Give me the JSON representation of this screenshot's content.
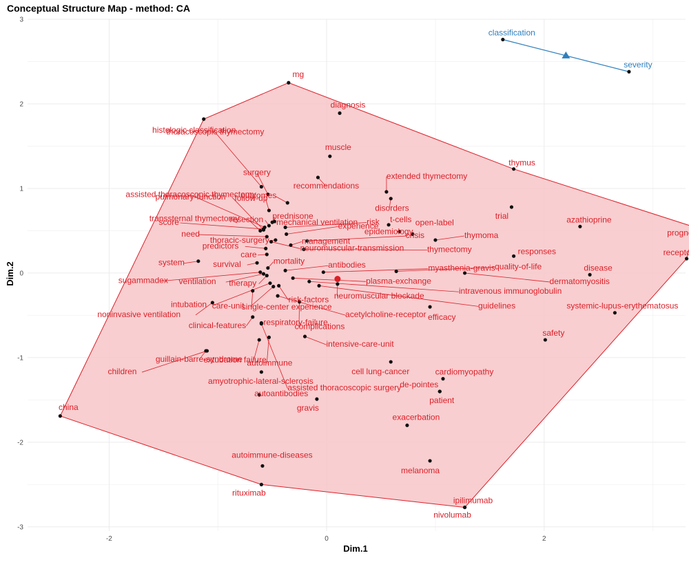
{
  "chart_data": {
    "type": "scatter",
    "title": "Conceptual Structure Map - method: CA",
    "xlabel": "Dim.1",
    "ylabel": "Dim.2",
    "xlim": [
      -2.75,
      3.3
    ],
    "ylim": [
      -3.05,
      3.0
    ],
    "x_ticks": [
      -2,
      0,
      2
    ],
    "y_ticks": [
      -3,
      -2,
      -1,
      0,
      1,
      2,
      3
    ],
    "grid": true,
    "colors": {
      "cluster1": "#dc1f28",
      "cluster1_fill": "#f7c6c8",
      "cluster2": "#2e7fbd",
      "point": "#111111",
      "grid": "#ebebeb",
      "axis_text": "#4d4d4d"
    },
    "clusters": [
      {
        "id": 1,
        "centroid": [
          0.1,
          -0.07
        ],
        "hull": [
          "mg",
          "thymus",
          "prognosis",
          "receptor",
          "ipilimumab",
          "rituximab",
          "china",
          "histologic classification"
        ],
        "points": [
          {
            "label": "mg",
            "x": -0.35,
            "y": 2.25
          },
          {
            "label": "diagnosis",
            "x": 0.12,
            "y": 1.89
          },
          {
            "label": "histologic classification",
            "x": -1.13,
            "y": 1.82
          },
          {
            "label": "muscle",
            "x": 0.03,
            "y": 1.38
          },
          {
            "label": "thymus",
            "x": 1.72,
            "y": 1.23
          },
          {
            "label": "recommendations",
            "x": -0.08,
            "y": 1.13
          },
          {
            "label": "thoracoscopic thymectomy",
            "x": -0.6,
            "y": 1.02
          },
          {
            "label": "assisted thoracoscopic thymectomy",
            "x": -0.57,
            "y": 0.54
          },
          {
            "label": "surgery",
            "x": -0.54,
            "y": 0.93
          },
          {
            "label": "outcomes",
            "x": -0.36,
            "y": 0.83
          },
          {
            "label": "extended thymectomy",
            "x": 0.55,
            "y": 0.96
          },
          {
            "label": "follow-up",
            "x": -0.53,
            "y": 0.74
          },
          {
            "label": "pulmonary-function",
            "x": -0.58,
            "y": 0.51
          },
          {
            "label": "disorders",
            "x": 0.59,
            "y": 0.88
          },
          {
            "label": "mechanical ventilation",
            "x": -0.5,
            "y": 0.6
          },
          {
            "label": "risk",
            "x": -0.38,
            "y": 0.54
          },
          {
            "label": "transsternal thymectomy",
            "x": -0.61,
            "y": 0.5
          },
          {
            "label": "trial",
            "x": 1.7,
            "y": 0.78
          },
          {
            "label": "resection",
            "x": -0.53,
            "y": 0.56
          },
          {
            "label": "prednisone",
            "x": -0.48,
            "y": 0.61
          },
          {
            "label": "score",
            "x": -0.58,
            "y": 0.52
          },
          {
            "label": "experience",
            "x": -0.37,
            "y": 0.46
          },
          {
            "label": "t-cells",
            "x": 0.57,
            "y": 0.57
          },
          {
            "label": "open-label",
            "x": 0.79,
            "y": 0.46
          },
          {
            "label": "azathioprine",
            "x": 2.33,
            "y": 0.55
          },
          {
            "label": "epidemiology",
            "x": 0.67,
            "y": 0.49
          },
          {
            "label": "thymoma",
            "x": 1.0,
            "y": 0.39
          },
          {
            "label": "prognosis",
            "x": 3.39,
            "y": 0.54
          },
          {
            "label": "need",
            "x": -0.55,
            "y": 0.43
          },
          {
            "label": "thoracic-surgery",
            "x": -0.47,
            "y": 0.39
          },
          {
            "label": "management",
            "x": -0.33,
            "y": 0.33
          },
          {
            "label": "neuromuscular-transmission",
            "x": -0.51,
            "y": 0.37
          },
          {
            "label": "crisis",
            "x": -0.18,
            "y": 0.38
          },
          {
            "label": "thymectomy",
            "x": -0.21,
            "y": 0.28
          },
          {
            "label": "responses",
            "x": 1.72,
            "y": 0.2
          },
          {
            "label": "predictors",
            "x": -0.56,
            "y": 0.29
          },
          {
            "label": "care",
            "x": -0.55,
            "y": 0.22
          },
          {
            "label": "system",
            "x": -1.18,
            "y": 0.14
          },
          {
            "label": "survival",
            "x": -0.64,
            "y": 0.12
          },
          {
            "label": "mortality",
            "x": -0.54,
            "y": 0.06
          },
          {
            "label": "antibodies",
            "x": -0.38,
            "y": 0.03
          },
          {
            "label": "myasthenia-gravis",
            "x": -0.03,
            "y": 0.01
          },
          {
            "label": "quality-of-life",
            "x": 0.64,
            "y": 0.02
          },
          {
            "label": "receptor",
            "x": 3.31,
            "y": 0.17
          },
          {
            "label": "disease",
            "x": 2.42,
            "y": -0.02
          },
          {
            "label": "sugammadex",
            "x": -0.61,
            "y": 0.01
          },
          {
            "label": "ventilation",
            "x": -0.58,
            "y": -0.01
          },
          {
            "label": "therapy",
            "x": -0.55,
            "y": -0.03
          },
          {
            "label": "plasma-exchange",
            "x": -0.31,
            "y": -0.06
          },
          {
            "label": "intravenous immunoglobulin",
            "x": -0.16,
            "y": -0.1
          },
          {
            "label": "dermatomyositis",
            "x": 1.27,
            "y": 0.0
          },
          {
            "label": "neuromuscular blockade",
            "x": 0.1,
            "y": -0.13
          },
          {
            "label": "guidelines",
            "x": -0.07,
            "y": -0.15
          },
          {
            "label": "intubation",
            "x": -0.52,
            "y": -0.12
          },
          {
            "label": "care-unit",
            "x": -0.49,
            "y": -0.16
          },
          {
            "label": "risk-factors",
            "x": -0.44,
            "y": -0.15
          },
          {
            "label": "acetylcholine-receptor",
            "x": -0.45,
            "y": -0.27
          },
          {
            "label": "noninvasive ventilation",
            "x": -1.05,
            "y": -0.35
          },
          {
            "label": "single-center experience",
            "x": -0.68,
            "y": -0.21
          },
          {
            "label": "systemic-lupus-erythematosus",
            "x": 2.65,
            "y": -0.47
          },
          {
            "label": "efficacy",
            "x": 0.95,
            "y": -0.4
          },
          {
            "label": "complications",
            "x": -0.25,
            "y": -0.34
          },
          {
            "label": "clinical-features",
            "x": -0.68,
            "y": -0.52
          },
          {
            "label": "respiratory-failure",
            "x": -0.6,
            "y": -0.59
          },
          {
            "label": "children",
            "x": -1.1,
            "y": -0.92
          },
          {
            "label": "extubation failure",
            "x": -0.62,
            "y": -0.79
          },
          {
            "label": "intensive-care-unit",
            "x": -0.2,
            "y": -0.75
          },
          {
            "label": "autoimmune",
            "x": -0.53,
            "y": -0.76
          },
          {
            "label": "assisted thoracoscopic surgery",
            "x": -0.6,
            "y": -0.6
          },
          {
            "label": "safety",
            "x": 2.01,
            "y": -0.79
          },
          {
            "label": "guillain-barre-syndrome",
            "x": -1.11,
            "y": -0.92
          },
          {
            "label": "cell lung-cancer",
            "x": 0.59,
            "y": -1.05
          },
          {
            "label": "amyotrophic-lateral-sclerosis",
            "x": -0.6,
            "y": -1.17
          },
          {
            "label": "cardiomyopathy",
            "x": 1.07,
            "y": -1.25
          },
          {
            "label": "de-pointes",
            "x": 1.04,
            "y": -1.4
          },
          {
            "label": "autoantibodies",
            "x": -0.62,
            "y": -1.44
          },
          {
            "label": "patient",
            "x": 1.04,
            "y": -1.4
          },
          {
            "label": "gravis",
            "x": -0.09,
            "y": -1.49
          },
          {
            "label": "china",
            "x": -2.45,
            "y": -1.69
          },
          {
            "label": "exacerbation",
            "x": 0.74,
            "y": -1.8
          },
          {
            "label": "melanoma",
            "x": 0.95,
            "y": -2.22
          },
          {
            "label": "autoimmune-diseases",
            "x": -0.59,
            "y": -2.28
          },
          {
            "label": "rituximab",
            "x": -0.6,
            "y": -2.5
          },
          {
            "label": "ipilimumab",
            "x": 1.27,
            "y": -2.77
          },
          {
            "label": "nivolumab",
            "x": 1.27,
            "y": -2.77
          }
        ]
      },
      {
        "id": 2,
        "centroid": [
          2.2,
          2.57
        ],
        "hull": [
          "classification",
          "severity"
        ],
        "points": [
          {
            "label": "classification",
            "x": 1.62,
            "y": 2.76
          },
          {
            "label": "severity",
            "x": 2.78,
            "y": 2.38
          }
        ]
      }
    ]
  }
}
